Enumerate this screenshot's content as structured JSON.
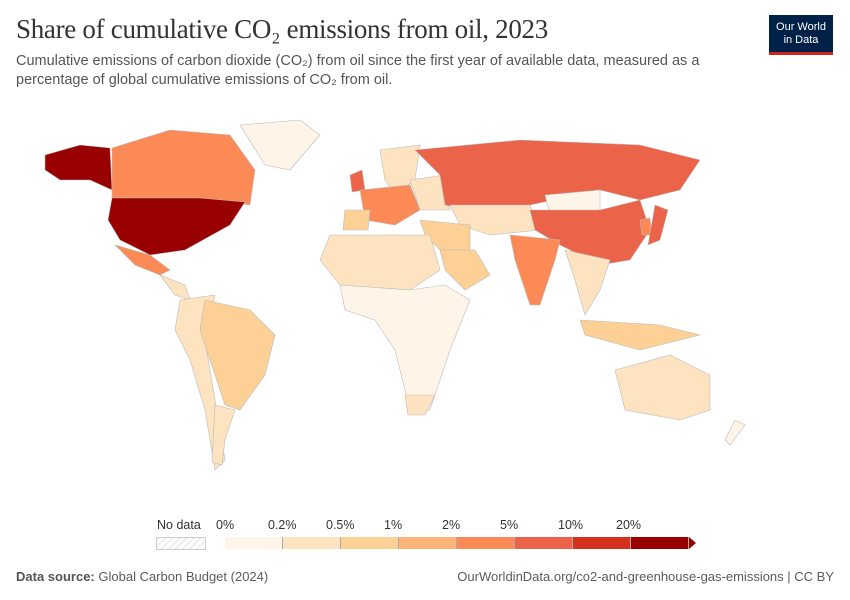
{
  "header": {
    "title": "Share of cumulative CO₂ emissions from oil, 2023",
    "subtitle": "Cumulative emissions of carbon dioxide (CO₂) from oil since the first year of available data, measured as a percentage of global cumulative emissions of CO₂ from oil.",
    "logo_line1": "Our World",
    "logo_line2": "in Data"
  },
  "legend": {
    "no_data": "No data",
    "ticks": [
      "0%",
      "0.2%",
      "0.5%",
      "1%",
      "2%",
      "5%",
      "10%",
      "20%"
    ],
    "colors": [
      "#fef4e8",
      "#fee3c0",
      "#fdd095",
      "#fdb57a",
      "#fc8a57",
      "#eb6349",
      "#d6301f",
      "#990000"
    ]
  },
  "map_shading": {
    "usa": 7,
    "alaska": 7,
    "canada": 4,
    "mexico": 4,
    "greenland": 0,
    "central_america": 1,
    "south_america_west": 1,
    "brazil": 2,
    "argentina": 1,
    "europe_west": 4,
    "uk": 5,
    "scandinavia": 1,
    "iberia": 2,
    "east_europe": 1,
    "russia": 5,
    "middle_east": 2,
    "saudi": 2,
    "north_africa": 1,
    "africa": 0,
    "south_africa": 1,
    "central_asia": 1,
    "mongolia": 0,
    "china": 5,
    "india": 4,
    "southeast_asia": 1,
    "indonesia": 2,
    "japan": 5,
    "korea": 4,
    "australia": 1,
    "new_zealand": 0
  },
  "footer": {
    "source_label": "Data source:",
    "source": "Global Carbon Budget (2024)",
    "url": "OurWorldinData.org/co2-and-greenhouse-gas-emissions | CC BY"
  }
}
